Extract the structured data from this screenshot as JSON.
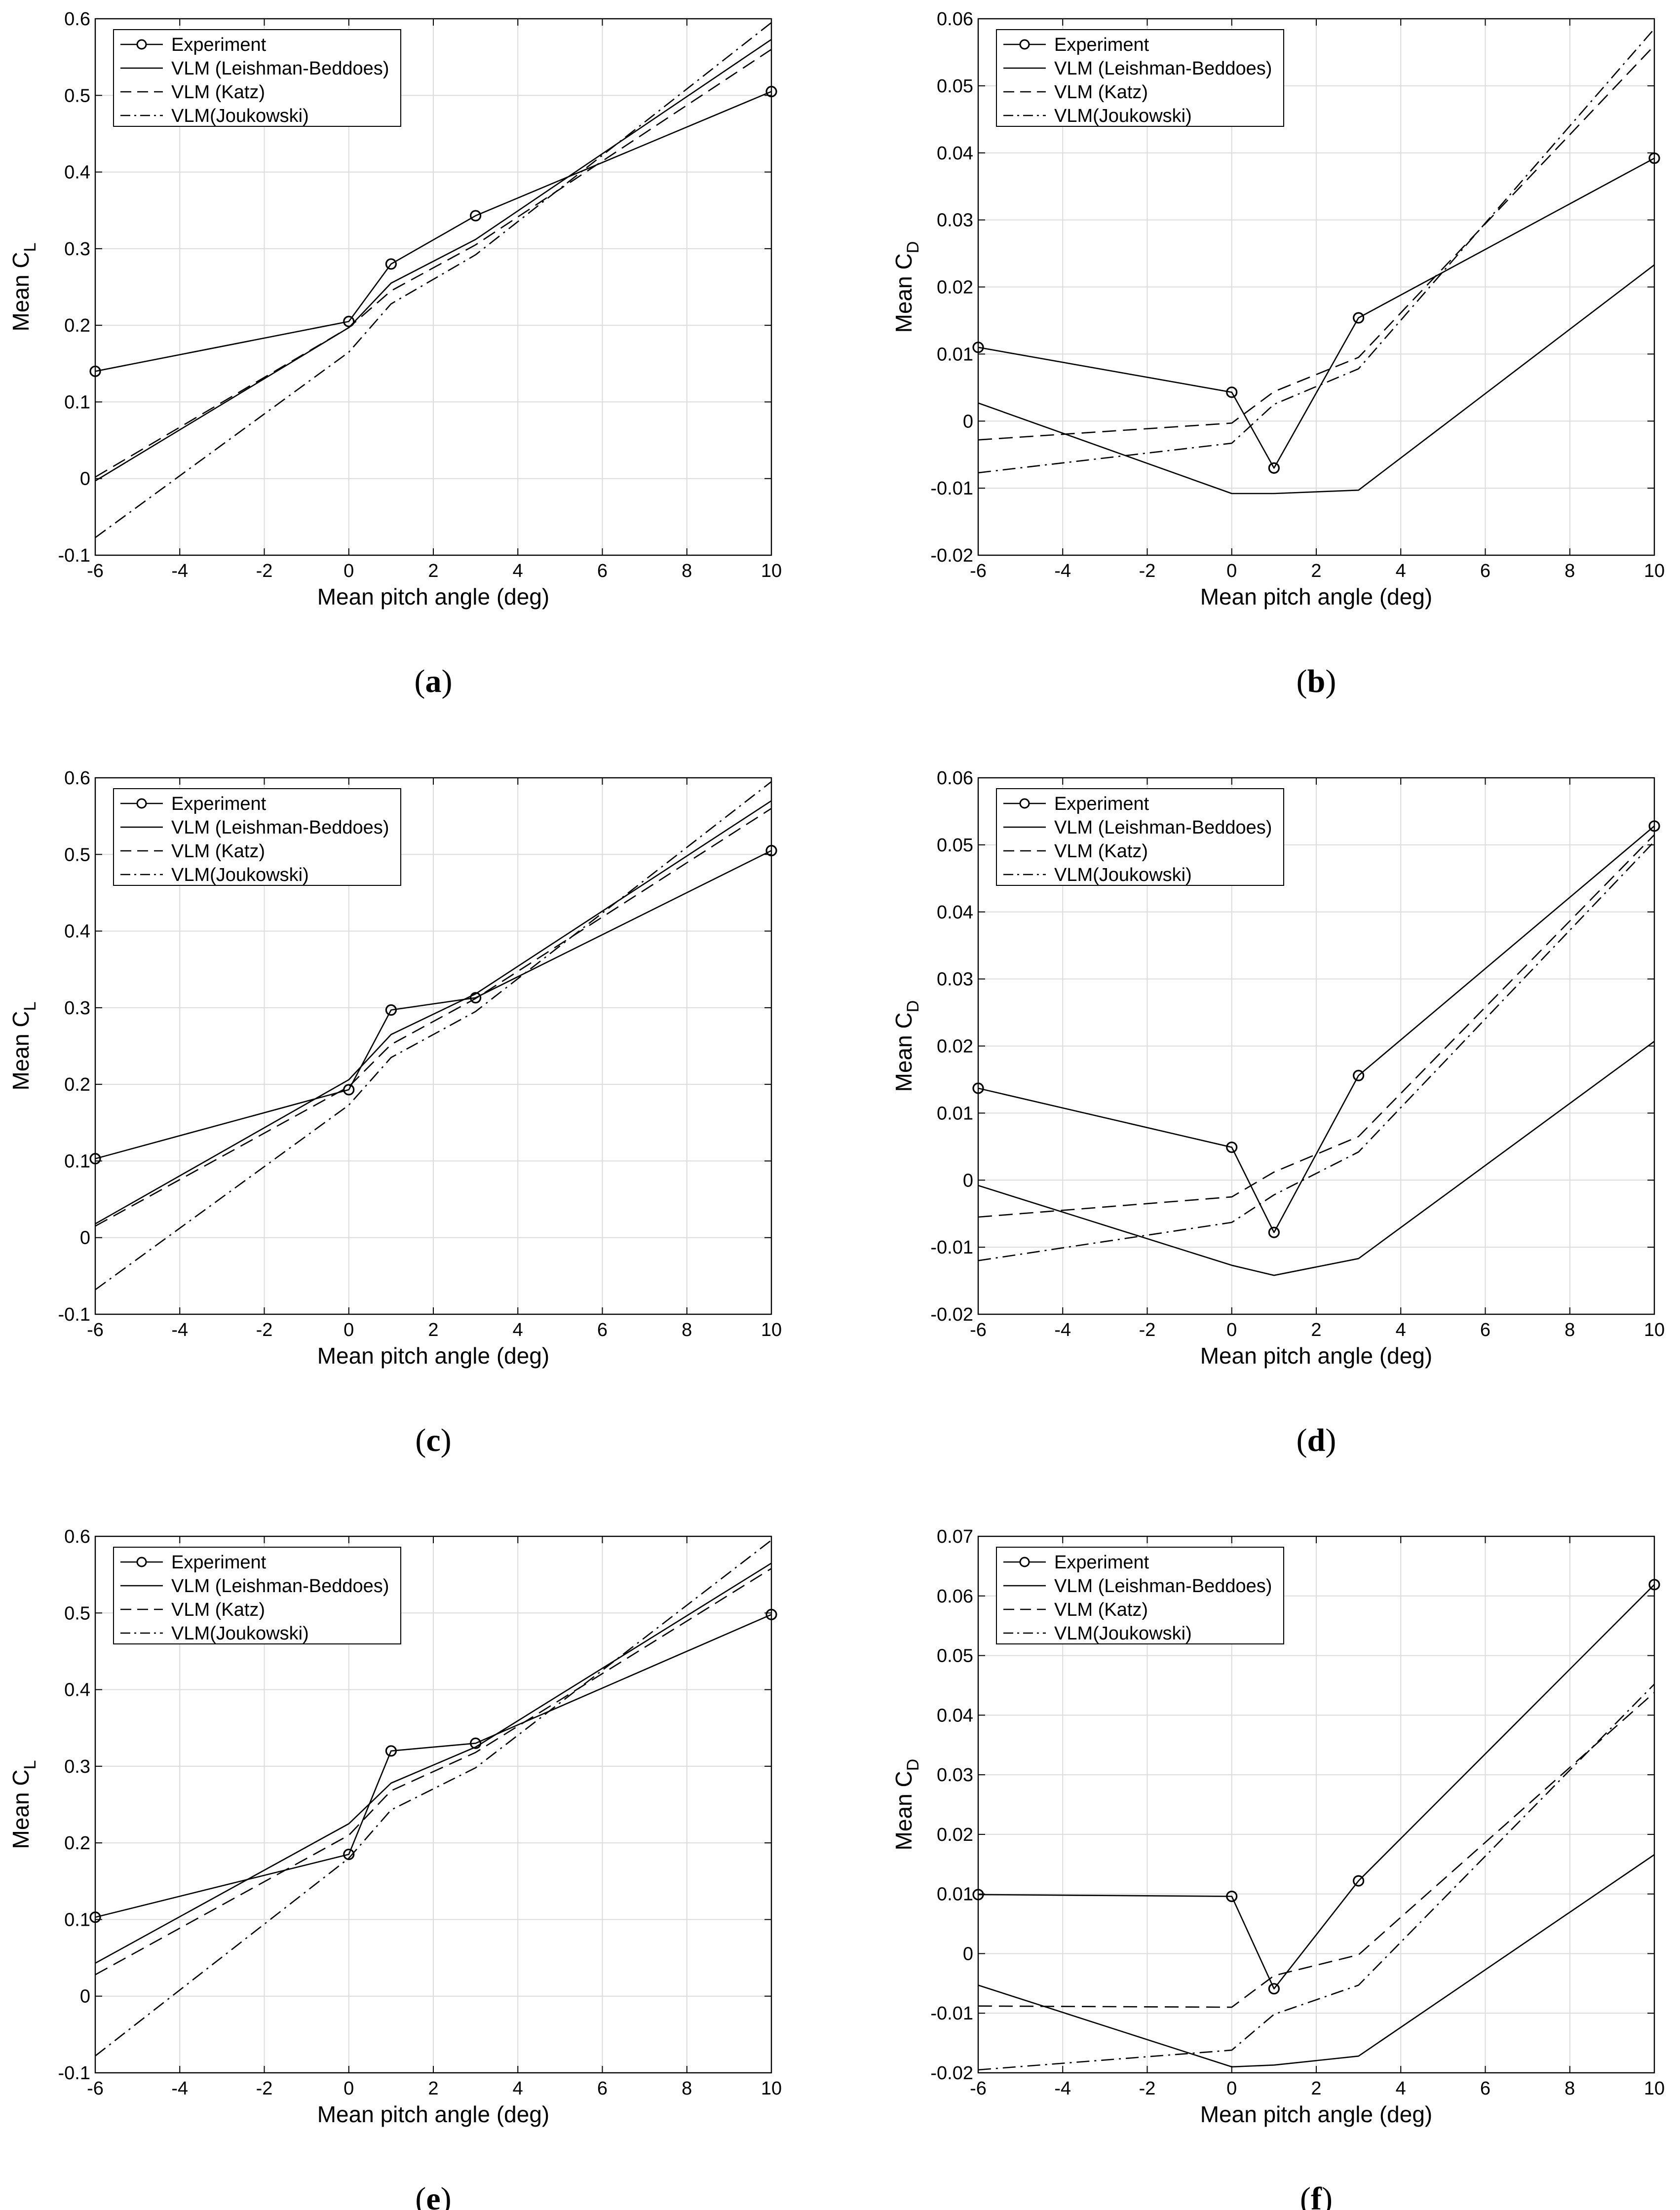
{
  "figure": {
    "x_label": "Mean pitch angle (deg)",
    "legend_entries": [
      "Experiment",
      "VLM (Leishman-Beddoes)",
      "VLM (Katz)",
      "VLM(Joukowski)"
    ]
  },
  "chart_data": [
    {
      "id": "a",
      "type": "line",
      "caption": "a",
      "ylabel": "Mean C",
      "ylabel_sub": "L",
      "xlabel": "Mean pitch angle (deg)",
      "xlim": [
        -6,
        10
      ],
      "ylim": [
        -0.1,
        0.6
      ],
      "xticks": [
        -6,
        -4,
        -2,
        0,
        2,
        4,
        6,
        8,
        10
      ],
      "xtick_labels": [
        "-6",
        "-4",
        "-2",
        "0",
        "2",
        "4",
        "6",
        "8",
        "10"
      ],
      "yticks": [
        -0.1,
        0,
        0.1,
        0.2,
        0.3,
        0.4,
        0.5,
        0.6
      ],
      "ytick_labels": [
        "-0.1",
        "0",
        "0.1",
        "0.2",
        "0.3",
        "0.4",
        "0.5",
        "0.6"
      ],
      "grid": true,
      "legend_position": "top-left",
      "series": [
        {
          "name": "Experiment",
          "style": "markers",
          "x": [
            -6,
            0,
            1,
            3,
            10
          ],
          "y": [
            0.14,
            0.205,
            0.28,
            0.343,
            0.505
          ]
        },
        {
          "name": "VLM (Leishman-Beddoes)",
          "style": "solid",
          "x": [
            -6,
            0,
            1,
            3,
            10
          ],
          "y": [
            -0.003,
            0.197,
            0.255,
            0.312,
            0.573
          ]
        },
        {
          "name": "VLM (Katz)",
          "style": "dashed",
          "x": [
            -6,
            0,
            1,
            3,
            10
          ],
          "y": [
            0.002,
            0.197,
            0.245,
            0.305,
            0.56
          ]
        },
        {
          "name": "VLM(Joukowski)",
          "style": "dashdot",
          "x": [
            -6,
            0,
            1,
            3,
            10
          ],
          "y": [
            -0.077,
            0.165,
            0.228,
            0.292,
            0.595
          ]
        }
      ]
    },
    {
      "id": "b",
      "type": "line",
      "caption": "b",
      "ylabel": "Mean C",
      "ylabel_sub": "D",
      "xlabel": "Mean pitch angle (deg)",
      "xlim": [
        -6,
        10
      ],
      "ylim": [
        -0.02,
        0.06
      ],
      "xticks": [
        -6,
        -4,
        -2,
        0,
        2,
        4,
        6,
        8,
        10
      ],
      "xtick_labels": [
        "-6",
        "-4",
        "-2",
        "0",
        "2",
        "4",
        "6",
        "8",
        "10"
      ],
      "yticks": [
        -0.02,
        -0.01,
        0,
        0.01,
        0.02,
        0.03,
        0.04,
        0.05,
        0.06
      ],
      "ytick_labels": [
        "-0.02",
        "-0.01",
        "0",
        "0.01",
        "0.02",
        "0.03",
        "0.04",
        "0.05",
        "0.06"
      ],
      "grid": true,
      "legend_position": "top-left",
      "series": [
        {
          "name": "Experiment",
          "style": "markers",
          "x": [
            -6,
            0,
            1,
            3,
            10
          ],
          "y": [
            0.011,
            0.0043,
            -0.007,
            0.0154,
            0.0392
          ]
        },
        {
          "name": "VLM (Leishman-Beddoes)",
          "style": "solid",
          "x": [
            -6,
            0,
            1,
            3,
            10
          ],
          "y": [
            0.0027,
            -0.0108,
            -0.0108,
            -0.0103,
            0.0233
          ]
        },
        {
          "name": "VLM (Katz)",
          "style": "dashed",
          "x": [
            -6,
            0,
            1,
            3,
            10
          ],
          "y": [
            -0.0028,
            -0.0003,
            0.0044,
            0.0095,
            0.056
          ]
        },
        {
          "name": "VLM(Joukowski)",
          "style": "dashdot",
          "x": [
            -6,
            0,
            1,
            3,
            10
          ],
          "y": [
            -0.0077,
            -0.0033,
            0.0025,
            0.0078,
            0.0585
          ]
        }
      ]
    },
    {
      "id": "c",
      "type": "line",
      "caption": "c",
      "ylabel": "Mean C",
      "ylabel_sub": "L",
      "xlabel": "Mean pitch angle (deg)",
      "xlim": [
        -6,
        10
      ],
      "ylim": [
        -0.1,
        0.6
      ],
      "xticks": [
        -6,
        -4,
        -2,
        0,
        2,
        4,
        6,
        8,
        10
      ],
      "xtick_labels": [
        "-6",
        "-4",
        "-2",
        "0",
        "2",
        "4",
        "6",
        "8",
        "10"
      ],
      "yticks": [
        -0.1,
        0,
        0.1,
        0.2,
        0.3,
        0.4,
        0.5,
        0.6
      ],
      "ytick_labels": [
        "-0.1",
        "0",
        "0.1",
        "0.2",
        "0.3",
        "0.4",
        "0.5",
        "0.6"
      ],
      "grid": true,
      "legend_position": "top-left",
      "series": [
        {
          "name": "Experiment",
          "style": "markers",
          "x": [
            -6,
            0,
            1,
            3,
            10
          ],
          "y": [
            0.103,
            0.193,
            0.297,
            0.313,
            0.505
          ]
        },
        {
          "name": "VLM (Leishman-Beddoes)",
          "style": "solid",
          "x": [
            -6,
            0,
            1,
            3,
            10
          ],
          "y": [
            0.018,
            0.206,
            0.265,
            0.318,
            0.57
          ]
        },
        {
          "name": "VLM (Katz)",
          "style": "dashed",
          "x": [
            -6,
            0,
            1,
            3,
            10
          ],
          "y": [
            0.015,
            0.197,
            0.252,
            0.312,
            0.56
          ]
        },
        {
          "name": "VLM(Joukowski)",
          "style": "dashdot",
          "x": [
            -6,
            0,
            1,
            3,
            10
          ],
          "y": [
            -0.068,
            0.173,
            0.235,
            0.295,
            0.595
          ]
        }
      ]
    },
    {
      "id": "d",
      "type": "line",
      "caption": "d",
      "ylabel": "Mean C",
      "ylabel_sub": "D",
      "xlabel": "Mean pitch angle (deg)",
      "xlim": [
        -6,
        10
      ],
      "ylim": [
        -0.02,
        0.06
      ],
      "xticks": [
        -6,
        -4,
        -2,
        0,
        2,
        4,
        6,
        8,
        10
      ],
      "xtick_labels": [
        "-6",
        "-4",
        "-2",
        "0",
        "2",
        "4",
        "6",
        "8",
        "10"
      ],
      "yticks": [
        -0.02,
        -0.01,
        0,
        0.01,
        0.02,
        0.03,
        0.04,
        0.05,
        0.06
      ],
      "ytick_labels": [
        "-0.02",
        "-0.01",
        "0",
        "0.01",
        "0.02",
        "0.03",
        "0.04",
        "0.05",
        "0.06"
      ],
      "grid": true,
      "legend_position": "top-left",
      "series": [
        {
          "name": "Experiment",
          "style": "markers",
          "x": [
            -6,
            0,
            1,
            3,
            10
          ],
          "y": [
            0.0137,
            0.0049,
            -0.0078,
            0.0156,
            0.0528
          ]
        },
        {
          "name": "VLM (Leishman-Beddoes)",
          "style": "solid",
          "x": [
            -6,
            0,
            1,
            3,
            10
          ],
          "y": [
            -0.0008,
            -0.0127,
            -0.0142,
            -0.0117,
            0.0207
          ]
        },
        {
          "name": "VLM (Katz)",
          "style": "dashed",
          "x": [
            -6,
            0,
            1,
            3,
            10
          ],
          "y": [
            -0.0055,
            -0.0025,
            0.0012,
            0.0065,
            0.0515
          ]
        },
        {
          "name": "VLM(Joukowski)",
          "style": "dashdot",
          "x": [
            -6,
            0,
            1,
            3,
            10
          ],
          "y": [
            -0.012,
            -0.0063,
            -0.0022,
            0.0042,
            0.0505
          ]
        }
      ]
    },
    {
      "id": "e",
      "type": "line",
      "caption": "e",
      "ylabel": "Mean C",
      "ylabel_sub": "L",
      "xlabel": "Mean pitch angle (deg)",
      "xlim": [
        -6,
        10
      ],
      "ylim": [
        -0.1,
        0.6
      ],
      "xticks": [
        -6,
        -4,
        -2,
        0,
        2,
        4,
        6,
        8,
        10
      ],
      "xtick_labels": [
        "-6",
        "-4",
        "-2",
        "0",
        "2",
        "4",
        "6",
        "8",
        "10"
      ],
      "yticks": [
        -0.1,
        0,
        0.1,
        0.2,
        0.3,
        0.4,
        0.5,
        0.6
      ],
      "ytick_labels": [
        "-0.1",
        "0",
        "0.1",
        "0.2",
        "0.3",
        "0.4",
        "0.5",
        "0.6"
      ],
      "grid": true,
      "legend_position": "top-left",
      "series": [
        {
          "name": "Experiment",
          "style": "markers",
          "x": [
            -6,
            0,
            1,
            3,
            10
          ],
          "y": [
            0.103,
            0.185,
            0.32,
            0.33,
            0.498
          ]
        },
        {
          "name": "VLM (Leishman-Beddoes)",
          "style": "solid",
          "x": [
            -6,
            0,
            1,
            3,
            10
          ],
          "y": [
            0.043,
            0.225,
            0.278,
            0.325,
            0.565
          ]
        },
        {
          "name": "VLM (Katz)",
          "style": "dashed",
          "x": [
            -6,
            0,
            1,
            3,
            10
          ],
          "y": [
            0.028,
            0.21,
            0.268,
            0.318,
            0.558
          ]
        },
        {
          "name": "VLM(Joukowski)",
          "style": "dashdot",
          "x": [
            -6,
            0,
            1,
            3,
            10
          ],
          "y": [
            -0.078,
            0.18,
            0.243,
            0.298,
            0.595
          ]
        }
      ]
    },
    {
      "id": "f",
      "type": "line",
      "caption": "f",
      "ylabel": "Mean C",
      "ylabel_sub": "D",
      "xlabel": "Mean pitch angle (deg)",
      "xlim": [
        -6,
        10
      ],
      "ylim": [
        -0.02,
        0.07
      ],
      "xticks": [
        -6,
        -4,
        -2,
        0,
        2,
        4,
        6,
        8,
        10
      ],
      "xtick_labels": [
        "-6",
        "-4",
        "-2",
        "0",
        "2",
        "4",
        "6",
        "8",
        "10"
      ],
      "yticks": [
        -0.02,
        -0.01,
        0,
        0.01,
        0.02,
        0.03,
        0.04,
        0.05,
        0.06,
        0.07
      ],
      "ytick_labels": [
        "-0.02",
        "-0.01",
        "0",
        "0.01",
        "0.02",
        "0.03",
        "0.04",
        "0.05",
        "0.06",
        "0.07"
      ],
      "grid": true,
      "legend_position": "top-left",
      "series": [
        {
          "name": "Experiment",
          "style": "markers",
          "x": [
            -6,
            0,
            1,
            3,
            10
          ],
          "y": [
            0.0099,
            0.0096,
            -0.0059,
            0.0122,
            0.0619
          ]
        },
        {
          "name": "VLM (Leishman-Beddoes)",
          "style": "solid",
          "x": [
            -6,
            0,
            1,
            3,
            10
          ],
          "y": [
            -0.0053,
            -0.019,
            -0.0187,
            -0.0172,
            0.0166
          ]
        },
        {
          "name": "VLM (Katz)",
          "style": "dashed",
          "x": [
            -6,
            0,
            1,
            3,
            10
          ],
          "y": [
            -0.0088,
            -0.009,
            -0.0037,
            -0.0002,
            0.0438
          ]
        },
        {
          "name": "VLM(Joukowski)",
          "style": "dashdot",
          "x": [
            -6,
            0,
            1,
            3,
            10
          ],
          "y": [
            -0.0195,
            -0.0162,
            -0.0102,
            -0.0053,
            0.0452
          ]
        }
      ]
    }
  ]
}
